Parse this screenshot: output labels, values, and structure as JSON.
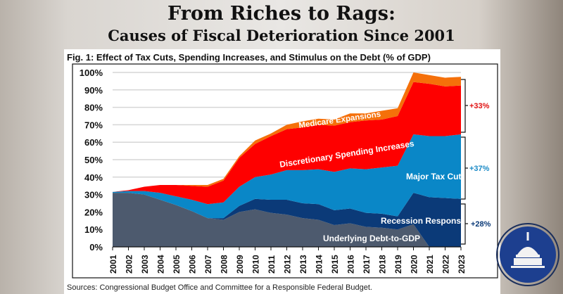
{
  "header": {
    "title": "From Riches to Rags:",
    "subtitle": "Causes of Fiscal Deterioration Since 2001"
  },
  "chart_data": {
    "type": "area",
    "stacked": true,
    "title": "Fig. 1: Effect of Tax Cuts, Spending Increases, and Stimulus on the Debt (% of GDP)",
    "source": "Sources: Congressional Budget Office and Committee for a Responsible Federal Budget.",
    "xlabel": "",
    "ylabel": "",
    "ylim": [
      0,
      100
    ],
    "grid": true,
    "x": [
      "2001",
      "2002",
      "2003",
      "2004",
      "2005",
      "2006",
      "2007",
      "2008",
      "2009",
      "2010",
      "2011",
      "2012",
      "2013",
      "2014",
      "2015",
      "2016",
      "2017",
      "2018",
      "2019",
      "2020",
      "2021",
      "2022",
      "2023"
    ],
    "yticks": [
      "0%",
      "10%",
      "20%",
      "30%",
      "40%",
      "50%",
      "60%",
      "70%",
      "80%",
      "90%",
      "100%"
    ],
    "series": [
      {
        "name": "Underlying Debt-to-GDP",
        "color": "#4d5a6e",
        "values": [
          31,
          31,
          30,
          27,
          24,
          20.5,
          16.5,
          15.5,
          20,
          21.5,
          19.5,
          18.5,
          16.5,
          15.5,
          12.5,
          13.5,
          11.5,
          11,
          10,
          13,
          0,
          0,
          0
        ]
      },
      {
        "name": "Recession Responses",
        "color": "#0b3a78",
        "values": [
          0,
          0,
          0,
          0,
          0,
          0,
          0,
          1,
          3.5,
          6,
          7.5,
          8.5,
          8.5,
          9,
          8.5,
          8.5,
          8,
          8,
          7.5,
          18,
          28.5,
          28,
          27.5
        ]
      },
      {
        "name": "Major Tax Cuts",
        "color": "#0a87c7",
        "values": [
          0.5,
          1,
          2,
          4,
          5,
          6.5,
          8,
          9,
          11,
          12.5,
          14.5,
          17,
          19,
          20,
          22,
          23,
          25,
          26.5,
          29,
          33.5,
          35,
          35.5,
          37
        ]
      },
      {
        "name": "Discretionary Spending Increases",
        "color": "#fe0000",
        "values": [
          0,
          0.5,
          2.5,
          4.5,
          6.5,
          8,
          10,
          12.5,
          16.5,
          19,
          22,
          23.5,
          24.5,
          25.5,
          26.5,
          26.5,
          28,
          27.5,
          28.5,
          30,
          30,
          28.5,
          28
        ]
      },
      {
        "name": "Medicare Expansions",
        "color": "#f5700a",
        "values": [
          0,
          0,
          0,
          0,
          0,
          0.5,
          1,
          1,
          1,
          2,
          1.5,
          2.5,
          3.5,
          3.5,
          3.5,
          5,
          4,
          5,
          4.5,
          5.5,
          5,
          5,
          5
        ]
      }
    ],
    "annotations": [
      {
        "text": "+33%",
        "color": "#e01010"
      },
      {
        "text": "+37%",
        "color": "#1a8ac6"
      },
      {
        "text": "+28%",
        "color": "#0b3a78"
      }
    ]
  },
  "logo": {
    "icon": "capitol-dome-icon",
    "color": "#1d3f8f"
  }
}
